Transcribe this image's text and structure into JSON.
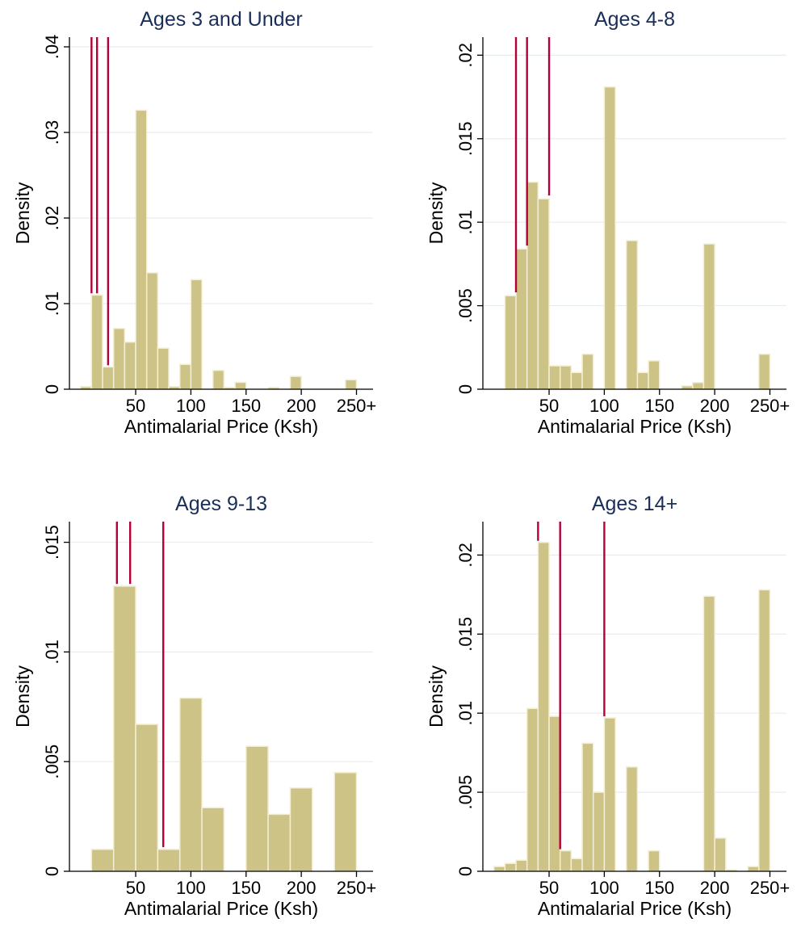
{
  "colors": {
    "bar": "#cdc386",
    "bar_edge": "#f3efd6",
    "ref_line": "#b40036",
    "title": "#1a2e5a",
    "grid": "#e6edf0"
  },
  "chart_data": [
    {
      "type": "bar",
      "title": "Ages 3 and Under",
      "xlabel": "Antimalarial Price (Ksh)",
      "ylabel": "Density",
      "x_ticks": [
        50,
        100,
        150,
        200,
        250
      ],
      "x_tick_labels": [
        "50",
        "100",
        "150",
        "200",
        "250+"
      ],
      "xlim": [
        -10,
        265
      ],
      "y_ticks": [
        0,
        0.01,
        0.02,
        0.03,
        0.04
      ],
      "y_tick_labels": [
        "0",
        ".01",
        ".02",
        ".03",
        ".04"
      ],
      "ylim": [
        0,
        0.04
      ],
      "grid": true,
      "bin_width": 10,
      "bins": [
        {
          "x": 0,
          "density": 0.0003
        },
        {
          "x": 10,
          "density": 0.011
        },
        {
          "x": 20,
          "density": 0.0026
        },
        {
          "x": 30,
          "density": 0.0071
        },
        {
          "x": 40,
          "density": 0.0055
        },
        {
          "x": 50,
          "density": 0.0326
        },
        {
          "x": 60,
          "density": 0.0136
        },
        {
          "x": 70,
          "density": 0.0048
        },
        {
          "x": 80,
          "density": 0.0003
        },
        {
          "x": 90,
          "density": 0.0029
        },
        {
          "x": 100,
          "density": 0.0128
        },
        {
          "x": 120,
          "density": 0.0022
        },
        {
          "x": 130,
          "density": 0.0002
        },
        {
          "x": 140,
          "density": 0.0008
        },
        {
          "x": 170,
          "density": 0.0002
        },
        {
          "x": 190,
          "density": 0.0015
        },
        {
          "x": 240,
          "density": 0.0011
        }
      ],
      "ref_lines": [
        {
          "x": 10,
          "bottom": 0.0112
        },
        {
          "x": 15,
          "bottom": 0.0112
        },
        {
          "x": 25,
          "bottom": 0.0028
        }
      ]
    },
    {
      "type": "bar",
      "title": "Ages 4-8",
      "xlabel": "Antimalarial Price (Ksh)",
      "ylabel": "Density",
      "x_ticks": [
        50,
        100,
        150,
        200,
        250
      ],
      "x_tick_labels": [
        "50",
        "100",
        "150",
        "200",
        "250+"
      ],
      "xlim": [
        -10,
        265
      ],
      "y_ticks": [
        0,
        0.005,
        0.01,
        0.015,
        0.02
      ],
      "y_tick_labels": [
        "0",
        ".005",
        ".01",
        ".015",
        ".02"
      ],
      "ylim": [
        0,
        0.0205
      ],
      "grid": true,
      "bin_width": 10,
      "bins": [
        {
          "x": 10,
          "density": 0.0056
        },
        {
          "x": 20,
          "density": 0.0084
        },
        {
          "x": 30,
          "density": 0.0124
        },
        {
          "x": 40,
          "density": 0.0114
        },
        {
          "x": 50,
          "density": 0.0014
        },
        {
          "x": 60,
          "density": 0.0014
        },
        {
          "x": 70,
          "density": 0.001
        },
        {
          "x": 80,
          "density": 0.0021
        },
        {
          "x": 100,
          "density": 0.0181
        },
        {
          "x": 120,
          "density": 0.0089
        },
        {
          "x": 130,
          "density": 0.001
        },
        {
          "x": 140,
          "density": 0.0017
        },
        {
          "x": 170,
          "density": 0.0002
        },
        {
          "x": 180,
          "density": 0.0004
        },
        {
          "x": 190,
          "density": 0.0087
        },
        {
          "x": 240,
          "density": 0.0021
        }
      ],
      "ref_lines": [
        {
          "x": 20,
          "bottom": 0.0058
        },
        {
          "x": 30,
          "bottom": 0.0086
        },
        {
          "x": 50,
          "bottom": 0.0116
        }
      ]
    },
    {
      "type": "bar",
      "title": "Ages 9-13",
      "xlabel": "Antimalarial Price (Ksh)",
      "ylabel": "Density",
      "x_ticks": [
        50,
        100,
        150,
        200,
        250
      ],
      "x_tick_labels": [
        "50",
        "100",
        "150",
        "200",
        "250+"
      ],
      "xlim": [
        -10,
        265
      ],
      "y_ticks": [
        0,
        0.005,
        0.01,
        0.015
      ],
      "y_tick_labels": [
        "0",
        ".005",
        ".01",
        ".015"
      ],
      "ylim": [
        0,
        0.0155
      ],
      "grid": true,
      "bin_width": 20,
      "bins": [
        {
          "x": 10,
          "density": 0.001
        },
        {
          "x": 30,
          "density": 0.013
        },
        {
          "x": 50,
          "density": 0.0067
        },
        {
          "x": 70,
          "density": 0.001
        },
        {
          "x": 90,
          "density": 0.0079
        },
        {
          "x": 110,
          "density": 0.0029
        },
        {
          "x": 150,
          "density": 0.0057
        },
        {
          "x": 170,
          "density": 0.0026
        },
        {
          "x": 190,
          "density": 0.0038
        },
        {
          "x": 230,
          "density": 0.0045
        }
      ],
      "ref_lines": [
        {
          "x": 33,
          "bottom": 0.0131
        },
        {
          "x": 45,
          "bottom": 0.0131
        },
        {
          "x": 75,
          "bottom": 0.0011
        }
      ]
    },
    {
      "type": "bar",
      "title": "Ages 14+",
      "xlabel": "Antimalarial Price (Ksh)",
      "ylabel": "Density",
      "x_ticks": [
        50,
        100,
        150,
        200,
        250
      ],
      "x_tick_labels": [
        "50",
        "100",
        "150",
        "200",
        "250+"
      ],
      "xlim": [
        -10,
        265
      ],
      "y_ticks": [
        0,
        0.005,
        0.01,
        0.015,
        0.02
      ],
      "y_tick_labels": [
        "0",
        ".005",
        ".01",
        ".015",
        ".02"
      ],
      "ylim": [
        0,
        0.0215
      ],
      "grid": true,
      "bin_width": 10,
      "bins": [
        {
          "x": 0,
          "density": 0.0003
        },
        {
          "x": 10,
          "density": 0.0005
        },
        {
          "x": 20,
          "density": 0.0007
        },
        {
          "x": 30,
          "density": 0.0103
        },
        {
          "x": 40,
          "density": 0.0208
        },
        {
          "x": 50,
          "density": 0.0098
        },
        {
          "x": 60,
          "density": 0.0013
        },
        {
          "x": 70,
          "density": 0.0008
        },
        {
          "x": 80,
          "density": 0.0081
        },
        {
          "x": 90,
          "density": 0.005
        },
        {
          "x": 100,
          "density": 0.0097
        },
        {
          "x": 120,
          "density": 0.0066
        },
        {
          "x": 140,
          "density": 0.0013
        },
        {
          "x": 190,
          "density": 0.0174
        },
        {
          "x": 200,
          "density": 0.0021
        },
        {
          "x": 210,
          "density": 0.0001
        },
        {
          "x": 230,
          "density": 0.0003
        },
        {
          "x": 240,
          "density": 0.0178
        }
      ],
      "ref_lines": [
        {
          "x": 40,
          "bottom": 0.0209
        },
        {
          "x": 60,
          "bottom": 0.0014
        },
        {
          "x": 100,
          "bottom": 0.0098
        }
      ]
    }
  ]
}
